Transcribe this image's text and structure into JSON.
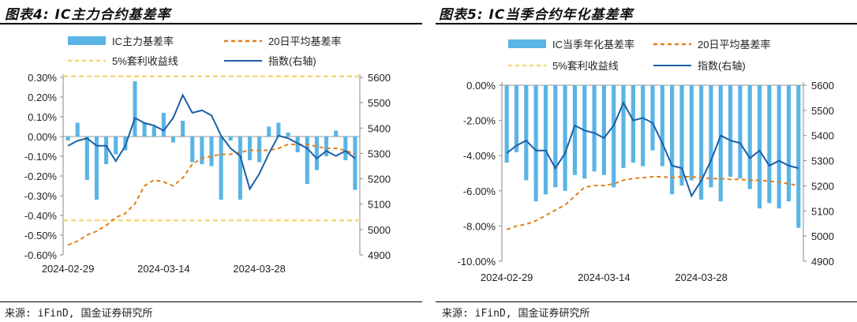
{
  "left_panel": {
    "title": "图表4: IC主力合约基差率",
    "source": "来源: iFinD, 国金证券研究所"
  },
  "right_panel": {
    "title": "图表5: IC当季合约年化基差率",
    "source": "来源: iFinD, 国金证券研究所"
  },
  "colors": {
    "bar": "#5AB4E5",
    "ma": "#E07F1A",
    "arb": "#F7D77E",
    "index": "#1B5FA5"
  },
  "chart_data": [
    {
      "type": "bar",
      "title": "",
      "legend": [
        "IC主力基差率",
        "20日平均基差率",
        "5%套利收益线",
        "指数(右轴)"
      ],
      "legend_position": "top",
      "x_tick_labels": [
        "2024-02-29",
        "2024-03-14",
        "2024-03-28"
      ],
      "y_left_ticks": [
        "0.30%",
        "0.20%",
        "0.10%",
        "0.00%",
        "-0.10%",
        "-0.20%",
        "-0.30%",
        "-0.40%",
        "-0.50%",
        "-0.60%"
      ],
      "y_right_ticks": [
        "5600",
        "5500",
        "5400",
        "5300",
        "5200",
        "5100",
        "5000",
        "4900"
      ],
      "ylim_left": [
        -0.6,
        0.3
      ],
      "ylim_right": [
        4900,
        5600
      ],
      "grid": false,
      "n_days": 31,
      "x_tick_index": [
        0,
        10,
        20
      ],
      "series": [
        {
          "name": "IC主力基差率",
          "kind": "bar",
          "axis": "left",
          "unit": "%",
          "values": [
            -0.02,
            0.07,
            -0.22,
            -0.32,
            -0.14,
            -0.09,
            -0.07,
            0.28,
            0.07,
            0.05,
            0.12,
            -0.03,
            0.08,
            -0.13,
            -0.14,
            -0.15,
            -0.32,
            -0.02,
            -0.32,
            -0.12,
            -0.13,
            0.05,
            0.07,
            0.02,
            -0.08,
            -0.24,
            -0.17,
            -0.1,
            0.03,
            -0.12,
            -0.27
          ]
        },
        {
          "name": "20日平均基差率",
          "kind": "line-dashed",
          "axis": "left",
          "unit": "%",
          "values": [
            -0.55,
            -0.53,
            -0.5,
            -0.48,
            -0.45,
            -0.41,
            -0.39,
            -0.34,
            -0.25,
            -0.22,
            -0.23,
            -0.25,
            -0.21,
            -0.14,
            -0.11,
            -0.1,
            -0.09,
            -0.09,
            -0.08,
            -0.07,
            -0.07,
            -0.07,
            -0.06,
            -0.04,
            -0.04,
            -0.04,
            -0.05,
            -0.06,
            -0.06,
            -0.07,
            -0.09
          ]
        },
        {
          "name": "5%套利收益线",
          "kind": "line-dashed-pair",
          "axis": "left",
          "unit": "%",
          "values": [
            0.305,
            -0.425
          ]
        },
        {
          "name": "指数(右轴)",
          "kind": "line",
          "axis": "right",
          "values": [
            5330,
            5350,
            5360,
            5330,
            5330,
            5270,
            5330,
            5440,
            5420,
            5410,
            5390,
            5440,
            5530,
            5460,
            5470,
            5450,
            5370,
            5320,
            5290,
            5160,
            5220,
            5300,
            5370,
            5360,
            5340,
            5320,
            5280,
            5310,
            5290,
            5310,
            5280
          ]
        }
      ]
    },
    {
      "type": "bar",
      "title": "",
      "legend": [
        "IC当季年化基差率",
        "20日平均基差率",
        "5%套利收益线",
        "指数(右轴)"
      ],
      "legend_position": "top",
      "x_tick_labels": [
        "2024-02-29",
        "2024-03-14",
        "2024-03-28"
      ],
      "y_left_ticks": [
        "0.00%",
        "-2.00%",
        "-4.00%",
        "-6.00%",
        "-8.00%",
        "-10.00%"
      ],
      "y_right_ticks": [
        "5600",
        "5500",
        "5400",
        "5300",
        "5200",
        "5100",
        "5000",
        "4900"
      ],
      "ylim_left": [
        -10,
        0
      ],
      "ylim_right": [
        4900,
        5600
      ],
      "grid": false,
      "n_days": 31,
      "x_tick_index": [
        0,
        10,
        20
      ],
      "series": [
        {
          "name": "IC当季年化基差率",
          "kind": "bar",
          "axis": "left",
          "unit": "%",
          "values": [
            -4.4,
            -3.8,
            -5.4,
            -6.6,
            -6.2,
            -5.8,
            -6.0,
            -5.1,
            -5.3,
            -4.9,
            -5.1,
            -5.8,
            -4.7,
            -4.4,
            -4.6,
            -3.7,
            -4.6,
            -6.2,
            -5.7,
            -5.4,
            -6.5,
            -5.8,
            -6.6,
            -5.2,
            -5.3,
            -5.9,
            -7.0,
            -6.7,
            -7.0,
            -6.6,
            -8.1
          ]
        },
        {
          "name": "20日平均基差率",
          "kind": "line-dashed",
          "axis": "left",
          "unit": "%",
          "values": [
            -8.2,
            -8.0,
            -7.9,
            -7.7,
            -7.4,
            -7.1,
            -6.8,
            -6.3,
            -5.8,
            -5.7,
            -5.7,
            -5.6,
            -5.4,
            -5.3,
            -5.25,
            -5.2,
            -5.2,
            -5.25,
            -5.2,
            -5.2,
            -5.25,
            -5.3,
            -5.3,
            -5.35,
            -5.35,
            -5.4,
            -5.4,
            -5.45,
            -5.5,
            -5.6,
            -5.7
          ]
        },
        {
          "name": "5%套利收益线",
          "kind": "line-dashed",
          "axis": "left",
          "unit": "%",
          "values": []
        },
        {
          "name": "指数(右轴)",
          "kind": "line",
          "axis": "right",
          "values": [
            5330,
            5360,
            5380,
            5340,
            5340,
            5270,
            5330,
            5440,
            5420,
            5410,
            5390,
            5440,
            5530,
            5460,
            5470,
            5450,
            5370,
            5280,
            5270,
            5160,
            5220,
            5300,
            5400,
            5380,
            5370,
            5310,
            5340,
            5280,
            5300,
            5280,
            5270
          ]
        }
      ]
    }
  ]
}
